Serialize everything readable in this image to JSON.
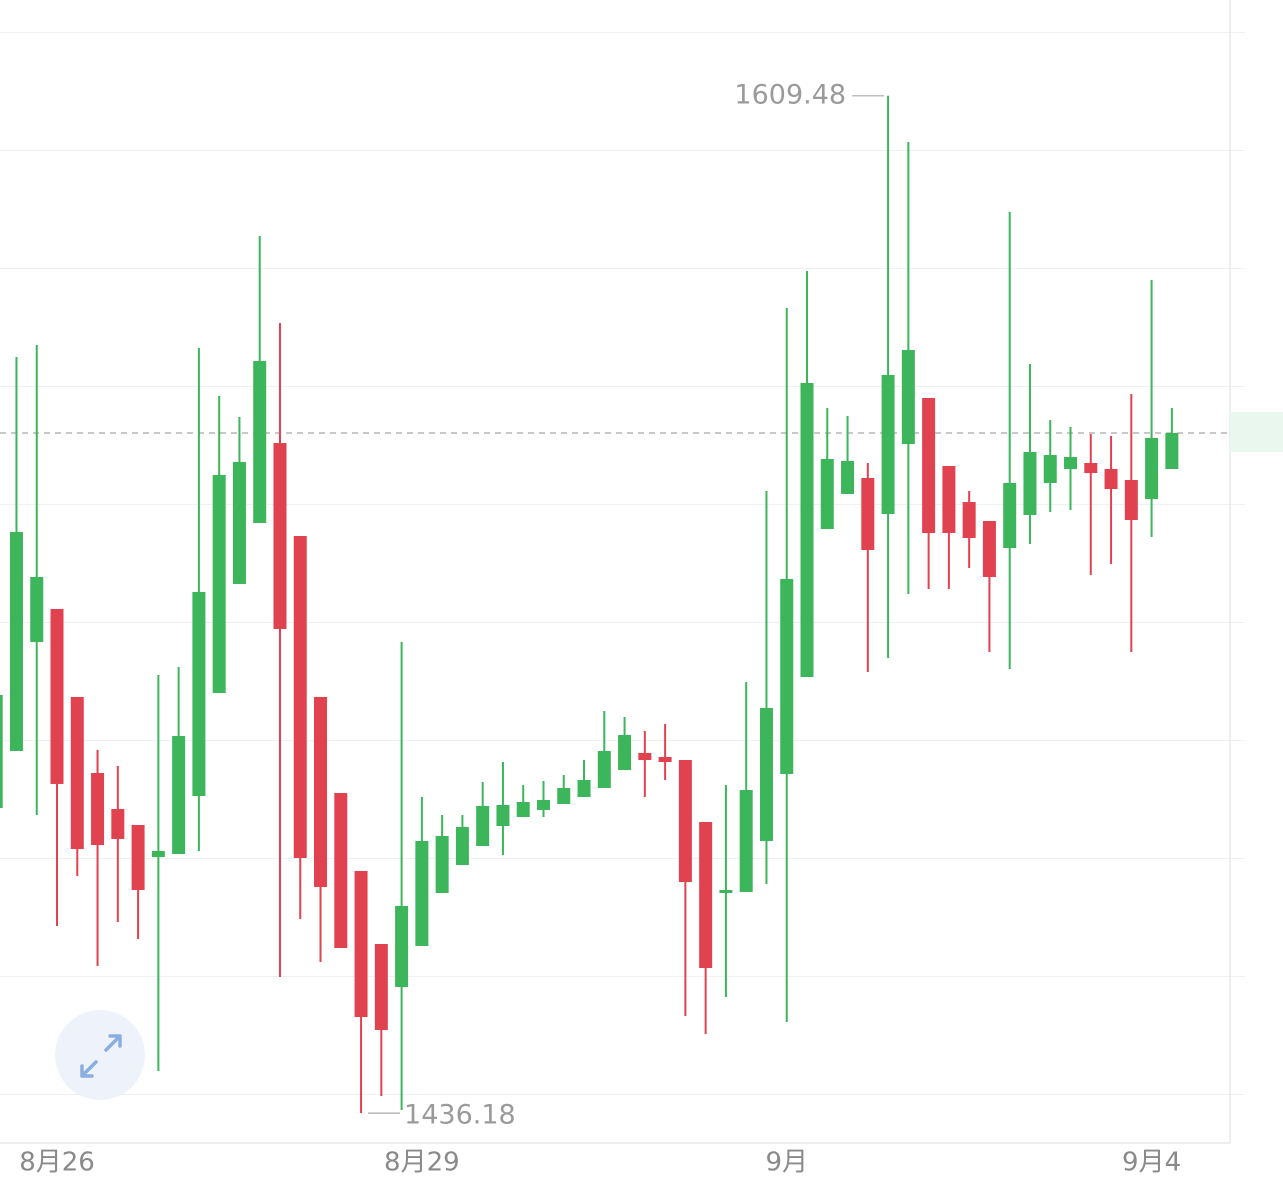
{
  "chart_data": {
    "type": "candlestick",
    "categories": [
      null,
      null,
      null,
      "8月26",
      null,
      null,
      null,
      null,
      null,
      null,
      null,
      null,
      null,
      null,
      null,
      null,
      null,
      null,
      null,
      null,
      null,
      "8月29",
      null,
      null,
      null,
      null,
      null,
      null,
      null,
      null,
      null,
      null,
      null,
      null,
      null,
      null,
      null,
      null,
      null,
      "9月",
      null,
      null,
      null,
      null,
      null,
      null,
      null,
      null,
      null,
      null,
      null,
      null,
      null,
      null,
      null,
      null,
      null,
      "9月4",
      null
    ],
    "open": [
      1488.16,
      1497.87,
      1516.44,
      1522.06,
      1507.07,
      1494.12,
      1487.99,
      1485.26,
      1479.81,
      1480.32,
      1490.2,
      1507.75,
      1526.32,
      1536.71,
      1550.33,
      1534.49,
      1507.07,
      1490.71,
      1477.43,
      1464.99,
      1457.66,
      1464.65,
      1473.68,
      1478.45,
      1481.68,
      1485.09,
      1486.62,
      1487.82,
      1488.84,
      1490.03,
      1491.56,
      1494.63,
      1497.53,
      1496.85,
      1496.33,
      1485.77,
      1473.68,
      1473.85,
      1482.54,
      1493.95,
      1510.47,
      1535.68,
      1541.65,
      1544.37,
      1538.24,
      1550.16,
      1558.0,
      1546.42,
      1540.28,
      1537.05,
      1532.45,
      1538.07,
      1543.52,
      1545.91,
      1546.93,
      1545.91,
      1544.03,
      1540.8,
      1545.91
    ],
    "high": [
      1508.26,
      1564.99,
      1567.03,
      1522.06,
      1507.07,
      1498.04,
      1495.31,
      1485.26,
      1510.81,
      1512.18,
      1566.52,
      1558.34,
      1554.76,
      1585.6,
      1570.78,
      1534.49,
      1507.07,
      1490.71,
      1477.43,
      1464.99,
      1516.44,
      1490.03,
      1486.96,
      1486.96,
      1492.59,
      1495.99,
      1492.08,
      1492.76,
      1493.78,
      1496.33,
      1504.68,
      1503.66,
      1501.27,
      1502.47,
      1496.33,
      1485.77,
      1492.08,
      1509.62,
      1542.16,
      1573.33,
      1579.64,
      1556.3,
      1554.93,
      1546.93,
      1609.48,
      1601.61,
      1558.0,
      1546.42,
      1542.16,
      1537.05,
      1589.69,
      1563.79,
      1554.25,
      1553.06,
      1551.87,
      1551.53,
      1558.68,
      1578.1,
      1556.3
    ],
    "low": [
      1487.82,
      1497.87,
      1486.96,
      1468.06,
      1476.57,
      1461.24,
      1468.74,
      1465.84,
      1443.36,
      1480.32,
      1480.83,
      1507.75,
      1526.32,
      1536.71,
      1459.37,
      1469.25,
      1461.92,
      1464.31,
      1436.18,
      1439.1,
      1436.71,
      1464.65,
      1473.68,
      1478.45,
      1481.68,
      1480.15,
      1486.62,
      1486.62,
      1488.84,
      1490.03,
      1491.56,
      1494.63,
      1490.03,
      1492.93,
      1452.72,
      1449.66,
      1455.96,
      1473.85,
      1475.21,
      1451.7,
      1510.47,
      1535.68,
      1541.65,
      1511.32,
      1513.71,
      1524.61,
      1525.46,
      1525.46,
      1529.04,
      1514.73,
      1511.84,
      1533.13,
      1538.58,
      1538.92,
      1527.85,
      1529.72,
      1514.73,
      1534.32,
      1545.91
    ],
    "close": [
      1507.41,
      1535.17,
      1527.51,
      1492.25,
      1481.17,
      1481.85,
      1482.88,
      1474.19,
      1480.83,
      1500.42,
      1524.95,
      1544.88,
      1547.1,
      1564.3,
      1518.65,
      1479.64,
      1474.7,
      1464.31,
      1452.55,
      1450.34,
      1471.46,
      1482.54,
      1483.39,
      1484.92,
      1488.5,
      1488.67,
      1489.18,
      1489.52,
      1491.56,
      1492.93,
      1497.87,
      1500.59,
      1496.33,
      1495.99,
      1475.55,
      1460.9,
      1474.19,
      1491.22,
      1505.19,
      1527.17,
      1560.56,
      1547.61,
      1547.27,
      1532.11,
      1561.92,
      1566.18,
      1535.0,
      1535.0,
      1534.15,
      1527.51,
      1543.52,
      1548.8,
      1548.29,
      1547.95,
      1545.22,
      1542.5,
      1537.22,
      1551.19,
      1552.04
    ],
    "up_color": "#3db55b",
    "down_color": "#e0434f",
    "ylim": [
      1431.6,
      1625.8
    ]
  }
}
